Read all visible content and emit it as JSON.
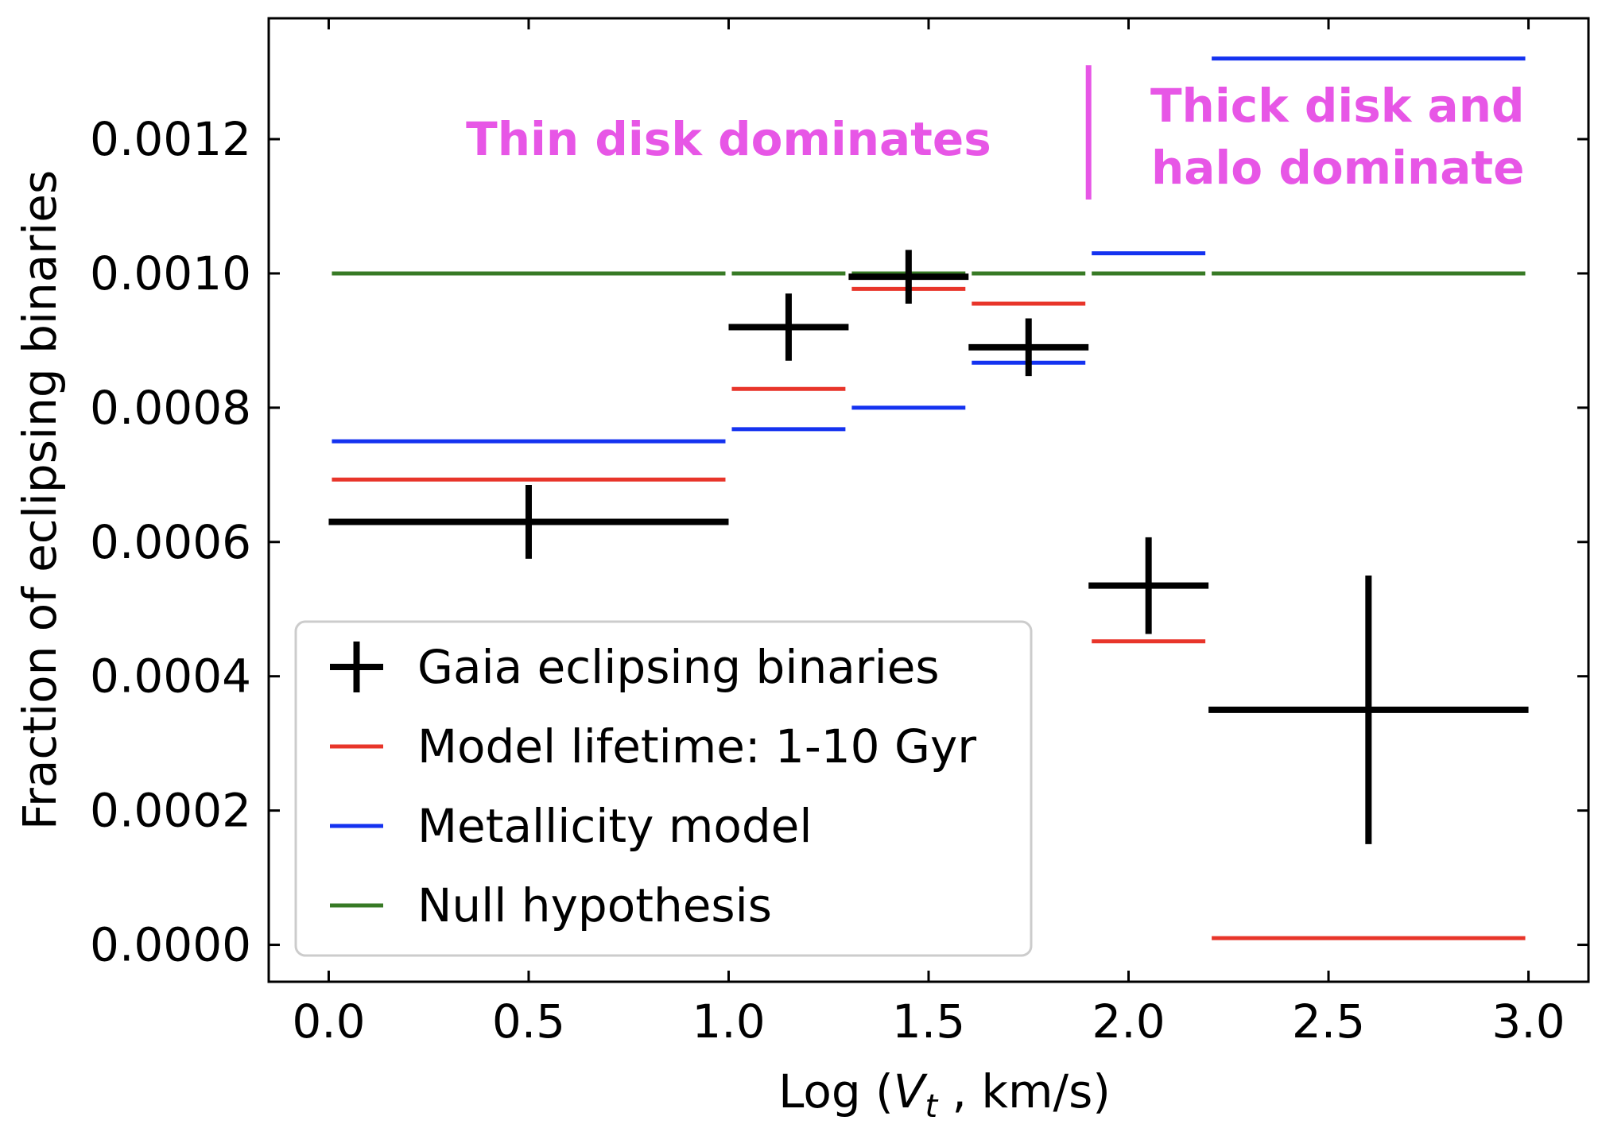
{
  "chart_data": {
    "type": "errorbar-step",
    "xlabel": {
      "prefix": "Log (",
      "var": "V",
      "sub": "t",
      "suffix": " , km/s)"
    },
    "ylabel": "Fraction of eclipsing binaries",
    "xlim": [
      -0.15,
      3.15
    ],
    "ylim": [
      -5.5e-05,
      0.00138
    ],
    "xticks": [
      0.0,
      0.5,
      1.0,
      1.5,
      2.0,
      2.5,
      3.0
    ],
    "xtick_labels": [
      "0.0",
      "0.5",
      "1.0",
      "1.5",
      "2.0",
      "2.5",
      "3.0"
    ],
    "yticks": [
      0.0,
      0.0002,
      0.0004,
      0.0006,
      0.0008,
      0.001,
      0.0012
    ],
    "ytick_labels": [
      "0.0000",
      "0.0002",
      "0.0004",
      "0.0006",
      "0.0008",
      "0.0010",
      "0.0012"
    ],
    "bins": [
      [
        0.0,
        1.0
      ],
      [
        1.0,
        1.3
      ],
      [
        1.3,
        1.6
      ],
      [
        1.6,
        1.9
      ],
      [
        1.9,
        2.2
      ],
      [
        2.2,
        3.0
      ]
    ],
    "series": [
      {
        "name": "Gaia eclipsing binaries",
        "color": "#000000",
        "kind": "errorbar",
        "x": [
          0.5,
          1.15,
          1.45,
          1.75,
          2.05,
          2.6
        ],
        "y": [
          0.00063,
          0.00092,
          0.000995,
          0.00089,
          0.000535,
          0.00035
        ],
        "yerr": [
          5.5e-05,
          5e-05,
          4e-05,
          4.3e-05,
          7.2e-05,
          0.0002
        ]
      },
      {
        "name": "Model lifetime: 1-10 Gyr",
        "color": "#e8352a",
        "kind": "step",
        "y": [
          0.000693,
          0.000828,
          0.000977,
          0.000955,
          0.000452,
          1e-05
        ]
      },
      {
        "name": "Metallicity model",
        "color": "#1432f0",
        "kind": "step",
        "y": [
          0.00075,
          0.000768,
          0.0008,
          0.000867,
          0.00103,
          0.00132
        ]
      },
      {
        "name": "Null hypothesis",
        "color": "#377a25",
        "kind": "step",
        "y": [
          0.001,
          0.001,
          0.001,
          0.001,
          0.001,
          0.001
        ]
      }
    ],
    "divider": {
      "x": 1.9,
      "y": [
        0.00111,
        0.00131
      ],
      "color": "#e756e6"
    },
    "annotations": [
      {
        "text_lines": [
          "Thin disk dominates"
        ],
        "x": 1.0,
        "y": 0.0012,
        "anchor": "middle"
      },
      {
        "text_lines": [
          "Thick disk and",
          "halo dominate"
        ],
        "x": 2.99,
        "y": 0.00125,
        "anchor": "end"
      }
    ],
    "legend": {
      "placement": "lower-left"
    }
  }
}
